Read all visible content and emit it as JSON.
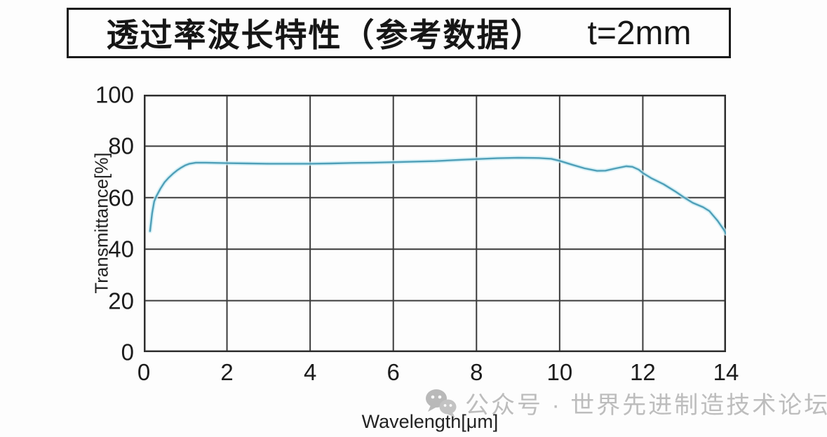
{
  "page": {
    "background": "#fdfdfd"
  },
  "title_box": {
    "title": "透过率波长特性（参考数据）",
    "annotation": "t=2mm"
  },
  "watermark": {
    "icon": "wechat-icon",
    "text": "公众号 · 世界先进制造技术论坛",
    "color": "#bdbdbd"
  },
  "chart_data": {
    "type": "line",
    "title": "透过率波长特性（参考数据） t=2mm",
    "xlabel": "Wavelength[μm]",
    "ylabel": "Transmittance[%]",
    "xlim": [
      0,
      14
    ],
    "ylim": [
      0,
      100
    ],
    "x_ticks": [
      0,
      2,
      4,
      6,
      8,
      10,
      12,
      14
    ],
    "y_ticks": [
      0,
      20,
      40,
      60,
      80,
      100
    ],
    "grid": true,
    "legend": "none",
    "line_color": "#4f9fb8",
    "halo_color": "#c9ecf4",
    "grid_color": "#3b3b3b",
    "border_color": "#2e2e2e",
    "series": [
      {
        "name": "transmittance",
        "points": [
          [
            0.15,
            47.0
          ],
          [
            0.2,
            54.0
          ],
          [
            0.25,
            58.5
          ],
          [
            0.3,
            60.5
          ],
          [
            0.4,
            63.5
          ],
          [
            0.5,
            66.0
          ],
          [
            0.6,
            67.8
          ],
          [
            0.7,
            69.3
          ],
          [
            0.8,
            70.6
          ],
          [
            0.9,
            71.7
          ],
          [
            1.0,
            72.6
          ],
          [
            1.1,
            73.2
          ],
          [
            1.25,
            73.6
          ],
          [
            1.5,
            73.6
          ],
          [
            2.0,
            73.4
          ],
          [
            2.5,
            73.3
          ],
          [
            3.0,
            73.2
          ],
          [
            3.5,
            73.2
          ],
          [
            4.0,
            73.2
          ],
          [
            4.5,
            73.3
          ],
          [
            5.0,
            73.5
          ],
          [
            5.5,
            73.6
          ],
          [
            6.0,
            73.8
          ],
          [
            6.5,
            74.0
          ],
          [
            7.0,
            74.2
          ],
          [
            7.5,
            74.6
          ],
          [
            8.0,
            75.0
          ],
          [
            8.5,
            75.3
          ],
          [
            9.0,
            75.5
          ],
          [
            9.5,
            75.4
          ],
          [
            9.8,
            75.1
          ],
          [
            10.0,
            74.3
          ],
          [
            10.3,
            72.8
          ],
          [
            10.6,
            71.4
          ],
          [
            10.9,
            70.4
          ],
          [
            11.1,
            70.5
          ],
          [
            11.35,
            71.4
          ],
          [
            11.6,
            72.2
          ],
          [
            11.75,
            72.0
          ],
          [
            11.9,
            70.9
          ],
          [
            12.0,
            69.6
          ],
          [
            12.2,
            67.6
          ],
          [
            12.5,
            65.2
          ],
          [
            12.8,
            62.2
          ],
          [
            13.0,
            60.0
          ],
          [
            13.2,
            58.0
          ],
          [
            13.45,
            56.3
          ],
          [
            13.6,
            54.8
          ],
          [
            13.8,
            51.0
          ],
          [
            13.95,
            47.5
          ],
          [
            14.0,
            46.0
          ]
        ]
      }
    ]
  }
}
